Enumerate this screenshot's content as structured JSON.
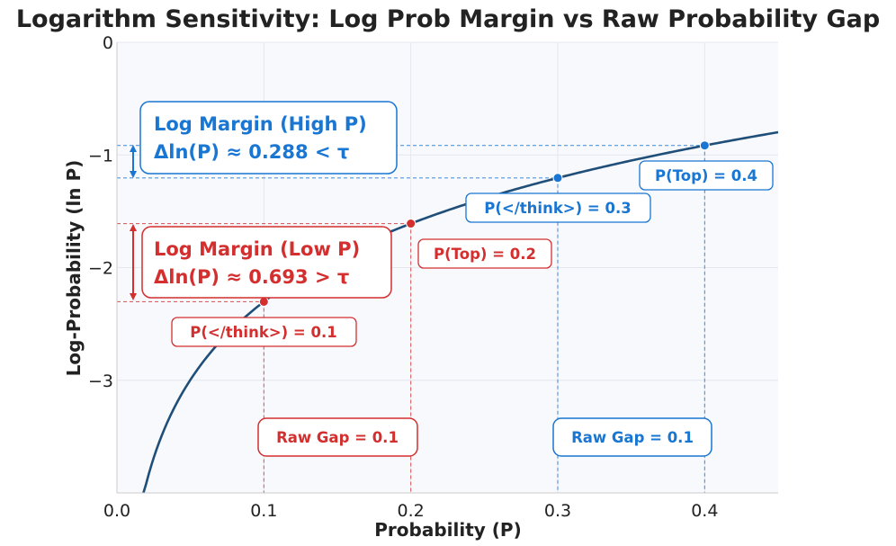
{
  "chart_data": {
    "type": "line",
    "title": "Logarithm Sensitivity: Log Prob Margin vs Raw Probability Gap",
    "xlabel": "Probability (P)",
    "ylabel": "Log-Probability (ln P)",
    "xlim": [
      0.0,
      0.45
    ],
    "ylim": [
      -4.0,
      0.0
    ],
    "xticks": [
      0.0,
      0.1,
      0.2,
      0.3,
      0.4
    ],
    "xtick_labels": [
      "0.0",
      "0.1",
      "0.2",
      "0.3",
      "0.4"
    ],
    "yticks": [
      0,
      -1,
      -2,
      -3
    ],
    "ytick_labels": [
      "0",
      "−1",
      "−2",
      "−3"
    ],
    "grid": true,
    "curve": {
      "function": "ln(P)",
      "x_start": 0.018,
      "x_end": 0.45,
      "color": "#1f4e79"
    },
    "points": [
      {
        "x": 0.1,
        "y": -2.303,
        "color": "#d32f2f",
        "label": "P(</think>) = 0.1"
      },
      {
        "x": 0.2,
        "y": -1.609,
        "color": "#d32f2f",
        "label": "P(Top) = 0.2"
      },
      {
        "x": 0.3,
        "y": -1.204,
        "color": "#1976d2",
        "label": "P(</think>) = 0.3"
      },
      {
        "x": 0.4,
        "y": -0.916,
        "color": "#1976d2",
        "label": "P(Top) = 0.4"
      }
    ],
    "annotations": {
      "high_margin": {
        "line1": "Log Margin (High P)",
        "line2": "Δln(P) ≈ 0.288 < τ",
        "color": "#1976d2"
      },
      "low_margin": {
        "line1": "Log Margin (Low P)",
        "line2": "Δln(P) ≈ 0.693 > τ",
        "color": "#d32f2f"
      },
      "raw_gap_low": {
        "text": "Raw Gap = 0.1",
        "color": "#d32f2f"
      },
      "raw_gap_high": {
        "text": "Raw Gap = 0.1",
        "color": "#1976d2"
      }
    }
  }
}
